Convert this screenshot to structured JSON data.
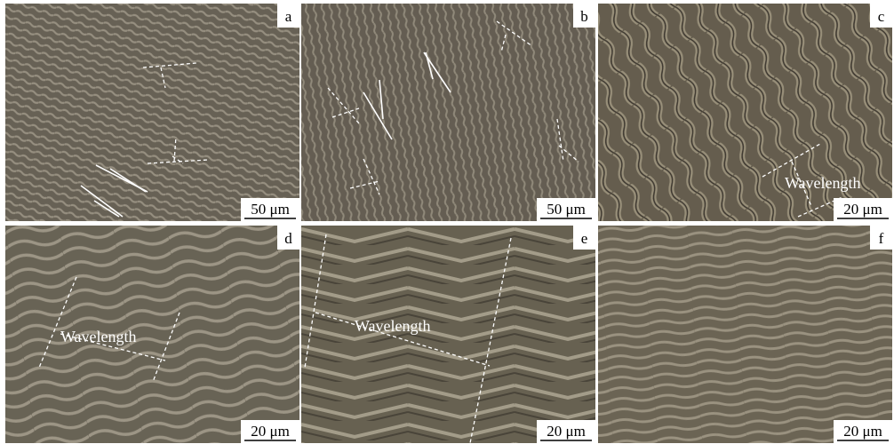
{
  "panels": [
    {
      "label": "a",
      "scale_bar": "50 μm"
    },
    {
      "label": "b",
      "scale_bar": "50 μm"
    },
    {
      "label": "c",
      "scale_bar": "20 μm",
      "annotation": "Wavelength"
    },
    {
      "label": "d",
      "scale_bar": "20 μm",
      "annotation": "Wavelength"
    },
    {
      "label": "e",
      "scale_bar": "20 μm",
      "annotation": "Wavelength"
    },
    {
      "label": "f",
      "scale_bar": "20 μm"
    }
  ]
}
